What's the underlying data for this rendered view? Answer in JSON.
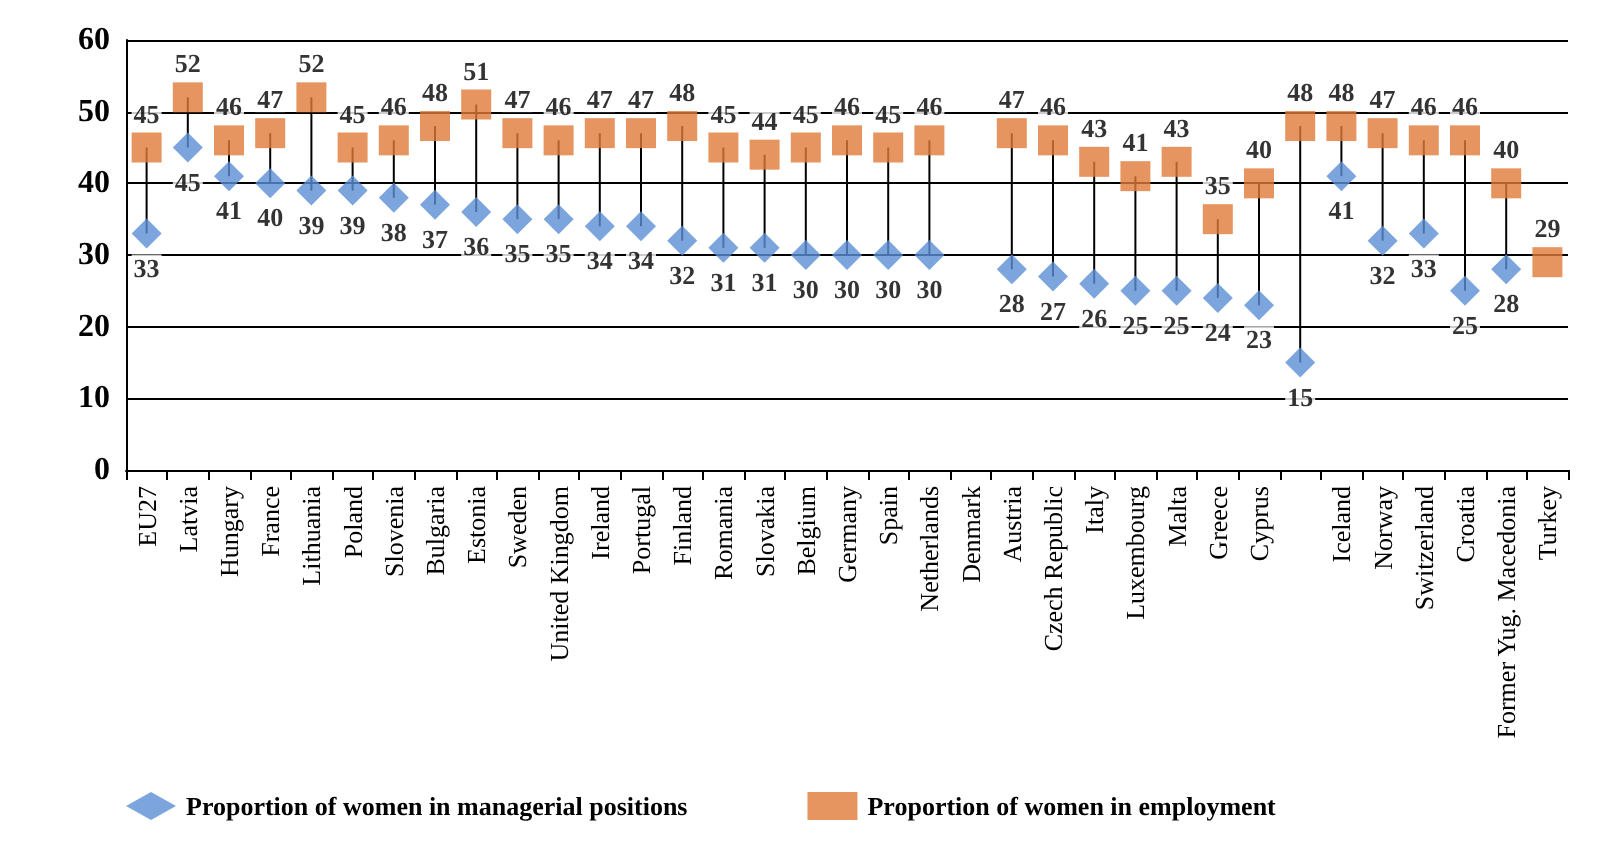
{
  "chart_data": {
    "type": "scatter",
    "categories": [
      "EU27",
      "Latvia",
      "Hungary",
      "France",
      "Lithuania",
      "Poland",
      "Slovenia",
      "Bulgaria",
      "Estonia",
      "Sweden",
      "United Kingdom",
      "Ireland",
      "Portugal",
      "Finland",
      "Romania",
      "Slovakia",
      "Belgium",
      "Germany",
      "Spain",
      "Netherlands",
      "Denmark",
      "Austria",
      "Czech Republic",
      "Italy",
      "Luxembourg",
      "Malta",
      "Greece",
      "Cyprus",
      null,
      "Iceland",
      "Norway",
      "Switzerland",
      "Croatia",
      "Former Yug. Macedonia",
      "Turkey"
    ],
    "series": [
      {
        "name": "Proportion of women in managerial positions",
        "color": "#5b8fd4",
        "marker": "diamond",
        "values": [
          33,
          45,
          41,
          40,
          39,
          39,
          38,
          37,
          36,
          35,
          35,
          34,
          34,
          32,
          31,
          31,
          30,
          30,
          30,
          30,
          null,
          28,
          27,
          26,
          25,
          25,
          24,
          23,
          15,
          41,
          32,
          33,
          25,
          28,
          null
        ]
      },
      {
        "name": "Proportion of women in employment",
        "color": "#e07b3a",
        "marker": "square",
        "values": [
          45,
          52,
          46,
          47,
          52,
          45,
          46,
          48,
          51,
          47,
          46,
          47,
          47,
          48,
          45,
          44,
          45,
          46,
          45,
          46,
          null,
          47,
          46,
          43,
          41,
          43,
          35,
          40,
          48,
          48,
          47,
          46,
          46,
          40,
          29
        ]
      }
    ],
    "ylim": [
      0,
      60
    ],
    "yticks": [
      0,
      10,
      20,
      30,
      40,
      50,
      60
    ],
    "grid": "y",
    "legend": "bottom",
    "data_labels": true
  }
}
